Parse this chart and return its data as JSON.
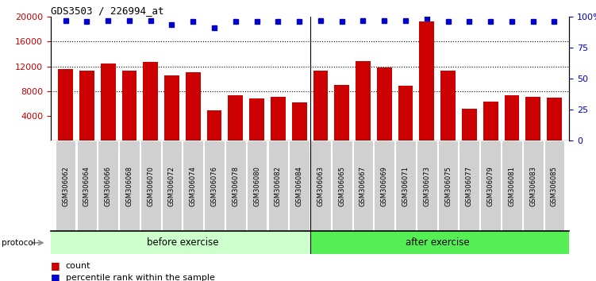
{
  "title": "GDS3503 / 226994_at",
  "categories": [
    "GSM306062",
    "GSM306064",
    "GSM306066",
    "GSM306068",
    "GSM306070",
    "GSM306072",
    "GSM306074",
    "GSM306076",
    "GSM306078",
    "GSM306080",
    "GSM306082",
    "GSM306084",
    "GSM306063",
    "GSM306065",
    "GSM306067",
    "GSM306069",
    "GSM306071",
    "GSM306073",
    "GSM306075",
    "GSM306077",
    "GSM306079",
    "GSM306081",
    "GSM306083",
    "GSM306085"
  ],
  "bar_values": [
    11500,
    11300,
    12500,
    11300,
    12700,
    10500,
    11000,
    4900,
    7300,
    6800,
    7000,
    6200,
    11300,
    9000,
    12900,
    11800,
    8800,
    19200,
    11300,
    5200,
    6300,
    7300,
    7000,
    6900
  ],
  "percentile_values": [
    97,
    96,
    97,
    97,
    97,
    94,
    96,
    91,
    96,
    96,
    96,
    96,
    97,
    96,
    97,
    97,
    97,
    99,
    96,
    96,
    96,
    96,
    96,
    96
  ],
  "bar_color": "#cc0000",
  "percentile_color": "#0000cc",
  "ylim_left": [
    0,
    20000
  ],
  "ylim_right": [
    0,
    100
  ],
  "yticks_left": [
    4000,
    8000,
    12000,
    16000,
    20000
  ],
  "yticks_right": [
    0,
    25,
    50,
    75,
    100
  ],
  "grid_values": [
    8000,
    12000,
    16000
  ],
  "before_exercise_count": 12,
  "after_exercise_count": 12,
  "before_label": "before exercise",
  "after_label": "after exercise",
  "before_color": "#ccffcc",
  "after_color": "#55ee55",
  "protocol_label": "protocol",
  "legend_count_label": "count",
  "legend_percentile_label": "percentile rank within the sample",
  "background_color": "#ffffff",
  "tick_label_color_left": "#cc0000",
  "tick_label_color_right": "#0000cc",
  "xlabel_box_color": "#d0d0d0"
}
